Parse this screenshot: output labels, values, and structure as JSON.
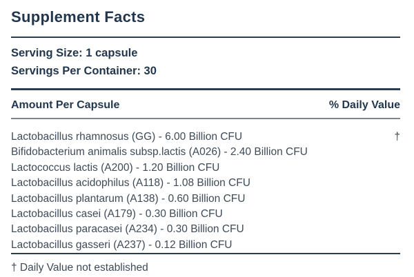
{
  "label": {
    "title": "Supplement Facts",
    "serving_size": "Serving Size: 1 capsule",
    "servings_per_container": "Servings Per Container: 30",
    "columns": {
      "left": "Amount Per Capsule",
      "right": "% Daily Value"
    },
    "ingredients": [
      {
        "name": "Lactobacillus rhamnosus (GG) - 6.00 Billion CFU",
        "daily_value": "†"
      },
      {
        "name": "Bifidobacterium animalis subsp.lactis (A026) - 2.40 Billion CFU",
        "daily_value": ""
      },
      {
        "name": "Lactococcus lactis (A200) - 1.20 Billion CFU",
        "daily_value": ""
      },
      {
        "name": "Lactobacillus acidophilus (A118) - 1.08 Billion CFU",
        "daily_value": ""
      },
      {
        "name": "Lactobacillus plantarum (A138) - 0.60 Billion CFU",
        "daily_value": ""
      },
      {
        "name": "Lactobacillus casei (A179) - 0.30 Billion CFU",
        "daily_value": ""
      },
      {
        "name": "Lactobacillus paracasei (A234) - 0.30 Billion CFU",
        "daily_value": ""
      },
      {
        "name": "Lactobacillus gasseri (A237) - 0.12 Billion CFU",
        "daily_value": ""
      }
    ],
    "footnote": "† Daily Value not established"
  },
  "colors": {
    "heading": "#22374e",
    "body": "#3e4a57",
    "divider_dark": "#2b3c4e",
    "divider_gray": "#7d868e"
  }
}
